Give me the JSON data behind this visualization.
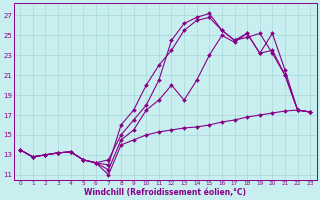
{
  "xlabel": "Windchill (Refroidissement éolien,°C)",
  "bg_color": "#c8eef0",
  "line_color": "#880088",
  "grid_color": "#a8d8d8",
  "xlim": [
    -0.5,
    23.5
  ],
  "ylim": [
    10.5,
    28.2
  ],
  "xticks": [
    0,
    1,
    2,
    3,
    4,
    5,
    6,
    7,
    8,
    9,
    10,
    11,
    12,
    13,
    14,
    15,
    16,
    17,
    18,
    19,
    20,
    21,
    22,
    23
  ],
  "yticks": [
    11,
    13,
    15,
    17,
    19,
    21,
    23,
    25,
    27
  ],
  "series": [
    {
      "x": [
        0,
        1,
        2,
        3,
        4,
        5,
        6,
        7,
        8,
        9,
        10,
        11,
        12,
        13,
        14,
        15,
        16,
        17,
        18,
        19,
        20,
        21,
        22,
        23
      ],
      "y": [
        13.5,
        12.8,
        13.0,
        13.2,
        13.3,
        12.5,
        12.2,
        11.0,
        14.0,
        14.5,
        15.0,
        15.3,
        15.5,
        15.7,
        15.8,
        16.0,
        16.3,
        16.5,
        16.8,
        17.0,
        17.2,
        17.4,
        17.5,
        17.3
      ]
    },
    {
      "x": [
        0,
        1,
        2,
        3,
        4,
        5,
        6,
        7,
        8,
        9,
        10,
        11,
        12,
        13,
        14,
        15,
        16,
        17,
        18,
        19,
        20,
        21,
        22,
        23
      ],
      "y": [
        13.5,
        12.8,
        13.0,
        13.2,
        13.3,
        12.5,
        12.2,
        11.5,
        14.5,
        15.5,
        17.5,
        18.5,
        20.0,
        18.5,
        20.5,
        23.0,
        25.0,
        24.3,
        25.2,
        23.2,
        25.2,
        21.5,
        17.5,
        17.3
      ]
    },
    {
      "x": [
        0,
        1,
        2,
        3,
        4,
        5,
        6,
        7,
        8,
        9,
        10,
        11,
        12,
        13,
        14,
        15,
        16,
        17,
        18,
        19,
        20,
        21,
        22,
        23
      ],
      "y": [
        13.5,
        12.8,
        13.0,
        13.2,
        13.3,
        12.5,
        12.2,
        12.0,
        16.0,
        17.5,
        20.0,
        22.0,
        23.5,
        25.5,
        26.5,
        26.8,
        25.5,
        24.5,
        24.8,
        25.2,
        23.2,
        21.0,
        17.5,
        17.3
      ]
    },
    {
      "x": [
        0,
        1,
        2,
        3,
        4,
        5,
        6,
        7,
        8,
        9,
        10,
        11,
        12,
        13,
        14,
        15,
        16,
        17,
        18,
        19,
        20,
        21,
        22,
        23
      ],
      "y": [
        13.5,
        12.8,
        13.0,
        13.2,
        13.3,
        12.5,
        12.2,
        12.5,
        15.0,
        16.5,
        18.0,
        20.5,
        24.5,
        26.2,
        26.8,
        27.2,
        25.5,
        24.5,
        25.2,
        23.2,
        23.5,
        21.0,
        17.5,
        17.3
      ]
    }
  ]
}
